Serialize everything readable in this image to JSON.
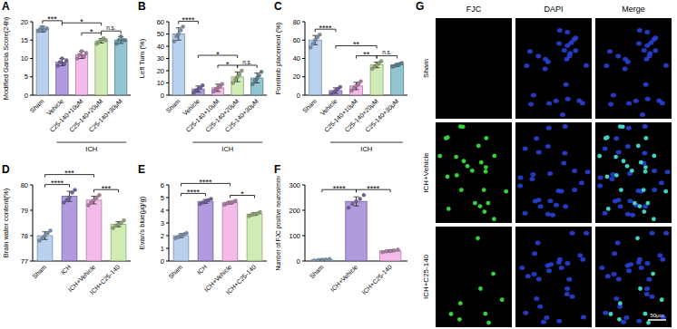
{
  "chart_data": [
    {
      "type": "bar",
      "panel": "A",
      "ylabel": "Modified Garcia Score(24h)",
      "categories": [
        "Sham",
        "Vehicle",
        "C25-140+10μM",
        "C25-140+20μM",
        "C25-140+30μM"
      ],
      "values": [
        18,
        9,
        11,
        14.8,
        15
      ],
      "errors": [
        0.8,
        1,
        1,
        0.6,
        0.9
      ],
      "points": [
        [
          17.5,
          18,
          18.5,
          17.8,
          18.2
        ],
        [
          8,
          9,
          10,
          8.5,
          9.5
        ],
        [
          10,
          11,
          12,
          10.5,
          11.5
        ],
        [
          14,
          14.5,
          15,
          15.5,
          15
        ],
        [
          14,
          15,
          16,
          15,
          15
        ]
      ],
      "colors": [
        "#a8c6ea",
        "#9c82d6",
        "#f1a9e3",
        "#c4e6a0",
        "#78b6c6"
      ],
      "ylim": [
        0,
        20
      ],
      "yticks": [
        0,
        5,
        10,
        15,
        20
      ],
      "group_label": "ICH",
      "group_span": [
        1,
        4
      ],
      "comparisons": [
        {
          "groups": [
            0,
            1
          ],
          "label": "***"
        },
        {
          "groups": [
            2,
            3
          ],
          "label": "*"
        },
        {
          "groups": [
            1,
            3
          ],
          "label": "*"
        },
        {
          "groups": [
            3,
            4
          ],
          "label": "n.s."
        }
      ]
    },
    {
      "type": "bar",
      "panel": "B",
      "ylabel": "Left Turn (%)",
      "categories": [
        "Sham",
        "Vehicle",
        "C25-140+10μM",
        "C25-140+20μM",
        "C25-140+30μM"
      ],
      "values": [
        50,
        5,
        6,
        15,
        14
      ],
      "errors": [
        5,
        2.5,
        3,
        4,
        4
      ],
      "points": [
        [
          44,
          48,
          50,
          53,
          56
        ],
        [
          2,
          4,
          5,
          6,
          8
        ],
        [
          3,
          5,
          6,
          7,
          9
        ],
        [
          10,
          13,
          15,
          17,
          20
        ],
        [
          9,
          12,
          14,
          16,
          19
        ]
      ],
      "colors": [
        "#a8c6ea",
        "#9c82d6",
        "#f1a9e3",
        "#c4e6a0",
        "#78b6c6"
      ],
      "ylim": [
        0,
        60
      ],
      "yticks": [
        0,
        10,
        20,
        30,
        40,
        50,
        60
      ],
      "group_label": "ICH",
      "group_span": [
        1,
        4
      ],
      "comparisons": [
        {
          "groups": [
            0,
            1
          ],
          "label": "****"
        },
        {
          "groups": [
            2,
            3
          ],
          "label": "*"
        },
        {
          "groups": [
            1,
            3
          ],
          "label": "*"
        },
        {
          "groups": [
            3,
            4
          ],
          "label": "n.s."
        }
      ]
    },
    {
      "type": "bar",
      "panel": "C",
      "ylabel": "Forelimb placement (%)",
      "categories": [
        "Sham",
        "Vehicle",
        "C25-140+10μM",
        "C25-140+20μM",
        "C25-140+30μM"
      ],
      "values": [
        60,
        5,
        10,
        33,
        33
      ],
      "errors": [
        5,
        3,
        4,
        3,
        1.5
      ],
      "points": [
        [
          52,
          56,
          60,
          63,
          66
        ],
        [
          1,
          3,
          5,
          7,
          9
        ],
        [
          5,
          8,
          10,
          12,
          15
        ],
        [
          29,
          31,
          33,
          35,
          37
        ],
        [
          31,
          32,
          33,
          34,
          35
        ]
      ],
      "colors": [
        "#a8c6ea",
        "#9c82d6",
        "#f1a9e3",
        "#c4e6a0",
        "#78b6c6"
      ],
      "ylim": [
        0,
        80
      ],
      "yticks": [
        0,
        20,
        40,
        60,
        80
      ],
      "group_label": "ICH",
      "group_span": [
        1,
        4
      ],
      "comparisons": [
        {
          "groups": [
            0,
            1
          ],
          "label": "****"
        },
        {
          "groups": [
            2,
            3
          ],
          "label": "**"
        },
        {
          "groups": [
            1,
            3
          ],
          "label": "**"
        },
        {
          "groups": [
            3,
            4
          ],
          "label": "n.s."
        }
      ]
    },
    {
      "type": "bar",
      "panel": "D",
      "ylabel": "Brain water content(%)",
      "categories": [
        "Sham",
        "ICH",
        "ICH+Vehicle",
        "ICH+C25-140"
      ],
      "values": [
        78.0,
        79.55,
        79.4,
        78.45
      ],
      "errors": [
        0.15,
        0.2,
        0.15,
        0.1
      ],
      "points": [
        [
          77.8,
          77.9,
          78.0,
          78.1,
          78.2
        ],
        [
          79.3,
          79.4,
          79.5,
          79.7,
          79.8
        ],
        [
          79.2,
          79.3,
          79.4,
          79.5,
          79.6
        ],
        [
          78.3,
          78.4,
          78.45,
          78.5,
          78.6
        ]
      ],
      "colors": [
        "#a8c6ea",
        "#9c82d6",
        "#f1a9e3",
        "#c4e6a0"
      ],
      "ylim": [
        77,
        80
      ],
      "yticks": [
        77,
        78,
        79,
        80
      ],
      "comparisons": [
        {
          "groups": [
            0,
            1
          ],
          "label": "****"
        },
        {
          "groups": [
            0,
            2
          ],
          "label": "***"
        },
        {
          "groups": [
            2,
            3
          ],
          "label": "***"
        }
      ]
    },
    {
      "type": "bar",
      "panel": "E",
      "ylabel": "Evan's blue(μg/g)",
      "categories": [
        "Sham",
        "ICH",
        "ICH+Vehicle",
        "ICH+C25-140"
      ],
      "values": [
        2.0,
        4.7,
        4.6,
        3.7
      ],
      "errors": [
        0.15,
        0.15,
        0.1,
        0.1
      ],
      "points": [
        [
          1.8,
          1.9,
          2.0,
          2.1,
          2.2
        ],
        [
          4.5,
          4.6,
          4.7,
          4.8,
          4.9
        ],
        [
          4.45,
          4.55,
          4.6,
          4.65,
          4.75
        ],
        [
          3.55,
          3.65,
          3.7,
          3.75,
          3.85
        ]
      ],
      "colors": [
        "#a8c6ea",
        "#9c82d6",
        "#f1a9e3",
        "#c4e6a0"
      ],
      "ylim": [
        0,
        6
      ],
      "yticks": [
        0,
        1,
        2,
        3,
        4,
        5,
        6
      ],
      "comparisons": [
        {
          "groups": [
            0,
            1
          ],
          "label": "****"
        },
        {
          "groups": [
            0,
            2
          ],
          "label": "****"
        },
        {
          "groups": [
            2,
            3
          ],
          "label": "*"
        }
      ]
    },
    {
      "type": "bar",
      "panel": "F",
      "ylabel": "Number of FJC positive neuron/mm²",
      "categories": [
        "Sham",
        "ICH+Vehicle",
        "ICH+C25-140"
      ],
      "values": [
        5,
        235,
        40
      ],
      "errors": [
        2.5,
        18,
        4
      ],
      "points": [
        [
          2,
          4,
          5,
          6,
          8
        ],
        [
          210,
          225,
          235,
          245,
          260
        ],
        [
          35,
          38,
          40,
          42,
          45
        ]
      ],
      "colors": [
        "#a8c6ea",
        "#9c82d6",
        "#f1a9e3"
      ],
      "ylim": [
        0,
        300
      ],
      "yticks": [
        0,
        100,
        200,
        300
      ],
      "comparisons": [
        {
          "groups": [
            0,
            1
          ],
          "label": "****"
        },
        {
          "groups": [
            1,
            2
          ],
          "label": "****"
        }
      ]
    }
  ],
  "image_panel": {
    "panel": "G",
    "columns": [
      "FJC",
      "DAPI",
      "Merge"
    ],
    "rows": [
      "Sham",
      "ICH+Vehicle",
      "ICH+C25-140"
    ],
    "scale_bar": "50μm"
  }
}
